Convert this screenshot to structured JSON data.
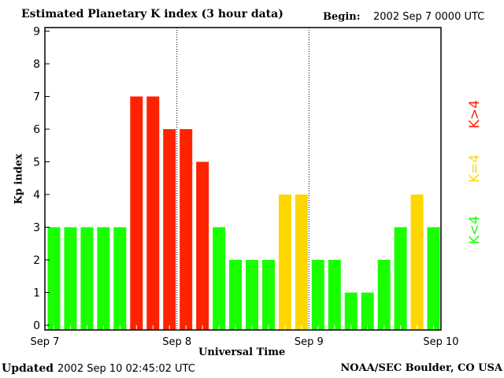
{
  "chart_data": {
    "type": "bar",
    "title": "Estimated Planetary K index (3 hour data)",
    "begin_label": "Begin:",
    "begin_value": "2002 Sep 7 0000 UTC",
    "xlabel": "Universal Time",
    "ylabel": "Kp index",
    "ylim": [
      0,
      9
    ],
    "yticks": [
      "0",
      "1",
      "2",
      "3",
      "4",
      "5",
      "6",
      "7",
      "8",
      "9"
    ],
    "xticks": [
      "Sep 7",
      "Sep 8",
      "Sep 9",
      "Sep 10"
    ],
    "values": [
      3,
      3,
      3,
      3,
      3,
      7,
      7,
      6,
      6,
      5,
      3,
      2,
      2,
      2,
      4,
      4,
      2,
      2,
      1,
      1,
      2,
      3,
      4,
      3
    ],
    "legend": [
      {
        "label": "K<4",
        "color": "#19ff00"
      },
      {
        "label": "K=4",
        "color": "#ffd700"
      },
      {
        "label": "K>4",
        "color": "#ff2200"
      }
    ]
  },
  "footer": {
    "updated_label": "Updated",
    "updated_value": "2002 Sep 10 02:45:02 UTC",
    "source": "NOAA/SEC Boulder, CO USA"
  }
}
